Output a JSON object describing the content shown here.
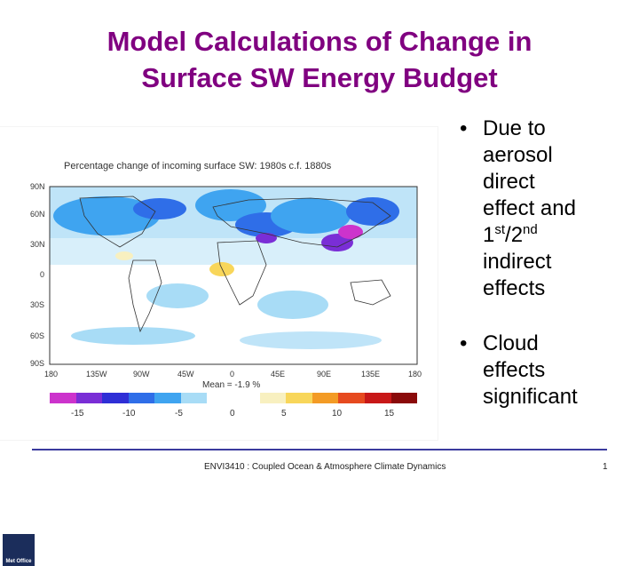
{
  "slide": {
    "title_line1": "Model Calculations of Change in",
    "title_line2": "Surface SW Energy Budget",
    "bullets": {
      "b1_l1": "Due to",
      "b1_l2": "aerosol",
      "b1_l3": "direct",
      "b1_l4": "effect and",
      "b1_l5_a": "1",
      "b1_l5_sup1": "st",
      "b1_l5_b": "/2",
      "b1_l5_sup2": "nd",
      "b1_l6": "indirect",
      "b1_l7": "effects",
      "b2_l1": "Cloud",
      "b2_l2": "effects",
      "b2_l3": "significant",
      "marker": "•"
    },
    "footer": "ENVI3410 : Coupled Ocean & Atmosphere Climate Dynamics",
    "page_number": "1"
  },
  "figure": {
    "title": "Percentage change of incoming surface SW: 1980s c.f. 1880s",
    "lat_labels": [
      "90N",
      "60N",
      "30N",
      "0",
      "30S",
      "60S",
      "90S"
    ],
    "lon_labels": [
      "180",
      "135W",
      "90W",
      "45W",
      "0",
      "45E",
      "90E",
      "135E",
      "180"
    ],
    "mean_label": "Mean = -1.9 %",
    "colorbar_ticks": [
      "-15",
      "-10",
      "-5",
      "0",
      "5",
      "10",
      "15"
    ],
    "colorbar_colors": [
      "#cc33cc",
      "#7a2ed6",
      "#2f2fd6",
      "#2f6ee8",
      "#3fa4f0",
      "#a8dcf6",
      "#ffffff",
      "#ffffff",
      "#f8f0c0",
      "#f8d65a",
      "#f39b25",
      "#e64a1f",
      "#c81818",
      "#8a0a0a"
    ],
    "logo_text": "Met Office"
  }
}
